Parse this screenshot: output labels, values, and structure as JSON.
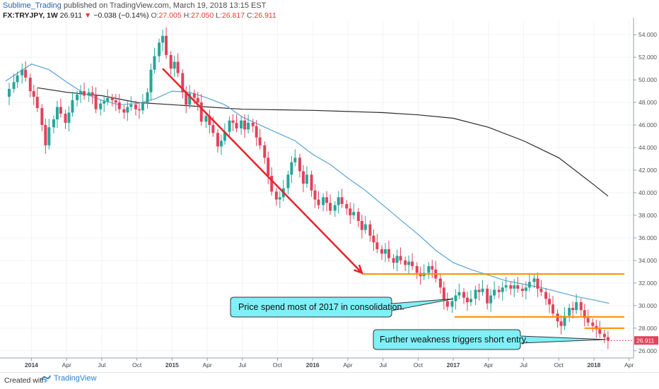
{
  "header": {
    "author": "Sublime_Trading",
    "published": "published on TradingView.com, March 19, 2018 13:15 EST",
    "symbol": "FX:TRYJPY, 1W",
    "last": "26.911",
    "change": "−0.038 (−0.14%)",
    "open_label": "O:",
    "open": "27.005",
    "high_label": "H:",
    "high": "27.050",
    "low_label": "L:",
    "low": "26.817",
    "close_label": "C:",
    "close": "26.911"
  },
  "footer": {
    "created_with": "Created with",
    "brand": "TradingView"
  },
  "annotations": {
    "consolidation": "Price spend most of 2017 in consolidation.",
    "weakness": "Further weakness triggers short entry."
  },
  "colors": {
    "up": "#26a69a",
    "down": "#e0435b",
    "ma_short": "#5aa2d4",
    "ma_long": "#2b2b2b",
    "trend_arrow": "#e8222a",
    "levels": "#ff8c00",
    "callout_fill": "#7ff0f8",
    "price_tag": "#e0435b"
  },
  "chart_data": {
    "type": "candlestick",
    "symbol": "FX:TRYJPY",
    "timeframe": "1W",
    "ylim": [
      25.8,
      55.2
    ],
    "y_ticks": [
      26,
      28,
      30,
      32,
      34,
      36,
      38,
      40,
      42,
      44,
      46,
      48,
      50,
      52,
      54
    ],
    "y_tick_labels": [
      "26.000",
      "28.000",
      "30.000",
      "32.000",
      "34.000",
      "36.000",
      "38.000",
      "40.000",
      "42.000",
      "44.000",
      "46.000",
      "48.000",
      "50.000",
      "52.000",
      "54.000"
    ],
    "x_tick_labels": [
      "2014",
      "Apr",
      "Jul",
      "Oct",
      "2015",
      "Apr",
      "Jul",
      "Oct",
      "2016",
      "Apr",
      "Jul",
      "Oct",
      "2017",
      "Apr",
      "Jul",
      "Oct",
      "2018",
      "Apr"
    ],
    "x_tick_months": [
      0,
      3,
      6,
      9,
      12,
      15,
      18,
      21,
      24,
      27,
      30,
      33,
      36,
      39,
      42,
      45,
      48,
      51
    ],
    "x_start_month": -2.2,
    "x_end_month": 51.2,
    "current_price": 26.911,
    "weekly_close": [
      [
        -2.2,
        48.5
      ],
      [
        -1.9,
        49.2
      ],
      [
        -1.5,
        49.8
      ],
      [
        -1.2,
        50.4
      ],
      [
        -0.8,
        50.9
      ],
      [
        -0.5,
        50.2
      ],
      [
        -0.1,
        49.0
      ],
      [
        0.2,
        48.5
      ],
      [
        0.5,
        47.5
      ],
      [
        0.9,
        46.0
      ],
      [
        1.2,
        44.2
      ],
      [
        1.5,
        45.8
      ],
      [
        1.9,
        46.5
      ],
      [
        2.2,
        47.6
      ],
      [
        2.5,
        47.0
      ],
      [
        2.9,
        46.2
      ],
      [
        3.2,
        47.1
      ],
      [
        3.5,
        48.2
      ],
      [
        3.9,
        48.7
      ],
      [
        4.2,
        49.0
      ],
      [
        4.5,
        48.6
      ],
      [
        4.9,
        48.9
      ],
      [
        5.2,
        48.6
      ],
      [
        5.5,
        47.4
      ],
      [
        5.9,
        47.9
      ],
      [
        6.2,
        48.1
      ],
      [
        6.5,
        48.4
      ],
      [
        6.9,
        48.2
      ],
      [
        7.2,
        48.0
      ],
      [
        7.5,
        47.4
      ],
      [
        7.9,
        47.1
      ],
      [
        8.2,
        47.6
      ],
      [
        8.5,
        47.8
      ],
      [
        8.9,
        47.4
      ],
      [
        9.2,
        47.3
      ],
      [
        9.5,
        48.0
      ],
      [
        9.9,
        48.9
      ],
      [
        10.2,
        50.9
      ],
      [
        10.5,
        52.1
      ],
      [
        10.9,
        53.3
      ],
      [
        11.2,
        53.9
      ],
      [
        11.5,
        52.2
      ],
      [
        11.9,
        51.0
      ],
      [
        12.2,
        51.6
      ],
      [
        12.5,
        50.6
      ],
      [
        12.9,
        48.9
      ],
      [
        13.2,
        47.8
      ],
      [
        13.5,
        48.8
      ],
      [
        13.9,
        48.4
      ],
      [
        14.2,
        48.0
      ],
      [
        14.5,
        46.3
      ],
      [
        14.9,
        46.8
      ],
      [
        15.2,
        46.0
      ],
      [
        15.5,
        45.3
      ],
      [
        15.9,
        44.1
      ],
      [
        16.2,
        44.6
      ],
      [
        16.5,
        45.4
      ],
      [
        16.9,
        46.4
      ],
      [
        17.2,
        46.2
      ],
      [
        17.5,
        45.7
      ],
      [
        17.9,
        46.4
      ],
      [
        18.2,
        45.6
      ],
      [
        18.5,
        46.2
      ],
      [
        18.9,
        45.9
      ],
      [
        19.2,
        44.9
      ],
      [
        19.5,
        44.2
      ],
      [
        19.9,
        43.1
      ],
      [
        20.2,
        41.5
      ],
      [
        20.5,
        40.1
      ],
      [
        20.9,
        39.4
      ],
      [
        21.2,
        39.6
      ],
      [
        21.5,
        40.4
      ],
      [
        21.9,
        41.6
      ],
      [
        22.2,
        42.7
      ],
      [
        22.5,
        43.1
      ],
      [
        22.9,
        41.9
      ],
      [
        23.2,
        40.8
      ],
      [
        23.5,
        41.6
      ],
      [
        23.9,
        40.2
      ],
      [
        24.2,
        39.4
      ],
      [
        24.5,
        38.9
      ],
      [
        24.9,
        39.6
      ],
      [
        25.2,
        39.1
      ],
      [
        25.5,
        38.4
      ],
      [
        25.9,
        38.9
      ],
      [
        26.2,
        39.6
      ],
      [
        26.5,
        39.0
      ],
      [
        26.9,
        38.6
      ],
      [
        27.2,
        38.0
      ],
      [
        27.5,
        38.3
      ],
      [
        27.9,
        37.5
      ],
      [
        28.2,
        36.7
      ],
      [
        28.5,
        37.2
      ],
      [
        28.9,
        36.2
      ],
      [
        29.2,
        35.6
      ],
      [
        29.5,
        35.0
      ],
      [
        29.9,
        34.6
      ],
      [
        30.2,
        35.0
      ],
      [
        30.5,
        34.2
      ],
      [
        30.9,
        33.8
      ],
      [
        31.2,
        34.4
      ],
      [
        31.5,
        34.0
      ],
      [
        31.9,
        33.6
      ],
      [
        32.2,
        33.9
      ],
      [
        32.5,
        33.5
      ],
      [
        32.9,
        32.9
      ],
      [
        33.2,
        32.6
      ],
      [
        33.5,
        32.9
      ],
      [
        33.9,
        33.5
      ],
      [
        34.2,
        33.2
      ],
      [
        34.5,
        32.4
      ],
      [
        34.9,
        31.6
      ],
      [
        35.2,
        30.4
      ],
      [
        35.5,
        29.9
      ],
      [
        35.9,
        30.4
      ],
      [
        36.2,
        30.9
      ],
      [
        36.5,
        31.2
      ],
      [
        36.9,
        30.7
      ],
      [
        37.2,
        30.3
      ],
      [
        37.5,
        30.6
      ],
      [
        37.9,
        31.4
      ],
      [
        38.2,
        31.2
      ],
      [
        38.5,
        31.5
      ],
      [
        38.9,
        30.2
      ],
      [
        39.2,
        30.9
      ],
      [
        39.5,
        31.4
      ],
      [
        39.9,
        31.2
      ],
      [
        40.2,
        31.6
      ],
      [
        40.5,
        31.8
      ],
      [
        40.9,
        31.5
      ],
      [
        41.2,
        31.8
      ],
      [
        41.5,
        31.5
      ],
      [
        41.9,
        31.3
      ],
      [
        42.2,
        31.6
      ],
      [
        42.5,
        32.1
      ],
      [
        42.9,
        32.4
      ],
      [
        43.2,
        31.5
      ],
      [
        43.5,
        31.2
      ],
      [
        43.9,
        30.6
      ],
      [
        44.2,
        30.1
      ],
      [
        44.5,
        29.3
      ],
      [
        44.9,
        28.6
      ],
      [
        45.2,
        28.2
      ],
      [
        45.5,
        29.1
      ],
      [
        45.9,
        29.8
      ],
      [
        46.2,
        29.6
      ],
      [
        46.5,
        30.3
      ],
      [
        46.9,
        29.6
      ],
      [
        47.2,
        28.9
      ],
      [
        47.5,
        28.5
      ],
      [
        47.9,
        28.2
      ],
      [
        48.2,
        27.9
      ],
      [
        48.5,
        27.5
      ],
      [
        48.9,
        27.2
      ],
      [
        49.2,
        26.9
      ]
    ],
    "series": [
      {
        "type": "line",
        "points": [
          [
            -2.2,
            49.9
          ],
          [
            0,
            51.4
          ],
          [
            1.5,
            50.9
          ],
          [
            3,
            49.8
          ],
          [
            4.5,
            48.8
          ],
          [
            6,
            48.2
          ],
          [
            7.5,
            47.8
          ],
          [
            9,
            47.9
          ],
          [
            10.5,
            48.3
          ],
          [
            12,
            49.0
          ],
          [
            13.5,
            48.9
          ],
          [
            15,
            48.4
          ],
          [
            16.5,
            47.8
          ],
          [
            18,
            46.7
          ],
          [
            19.5,
            46.0
          ],
          [
            21,
            45.3
          ],
          [
            22.5,
            44.6
          ],
          [
            24,
            43.4
          ],
          [
            25.5,
            42.5
          ],
          [
            27,
            41.3
          ],
          [
            28.5,
            40.2
          ],
          [
            30,
            38.9
          ],
          [
            31.5,
            37.6
          ],
          [
            33,
            36.3
          ],
          [
            34.5,
            34.9
          ],
          [
            36,
            33.8
          ],
          [
            37.5,
            33.2
          ],
          [
            39,
            32.7
          ],
          [
            40.5,
            32.2
          ],
          [
            42,
            31.9
          ],
          [
            43.5,
            31.6
          ],
          [
            45,
            31.2
          ],
          [
            46.5,
            30.8
          ],
          [
            48,
            30.5
          ],
          [
            49.3,
            30.2
          ]
        ]
      },
      {
        "type": "line",
        "points": [
          [
            0.5,
            49.3
          ],
          [
            3,
            48.9
          ],
          [
            6,
            48.6
          ],
          [
            9,
            48.0
          ],
          [
            12,
            47.8
          ],
          [
            15,
            47.6
          ],
          [
            18,
            47.4
          ],
          [
            21,
            47.35
          ],
          [
            24,
            47.3
          ],
          [
            27,
            47.2
          ],
          [
            30,
            47.1
          ],
          [
            33,
            46.9
          ],
          [
            36,
            46.6
          ],
          [
            39,
            45.8
          ],
          [
            42,
            44.6
          ],
          [
            45,
            43.1
          ],
          [
            48,
            40.7
          ],
          [
            49.2,
            39.7
          ]
        ]
      }
    ],
    "trend_arrow": {
      "from": [
        11.2,
        51.0
      ],
      "to": [
        28.2,
        32.9
      ]
    },
    "levels": [
      {
        "value": 32.8,
        "x_from": 28.2,
        "x_to": 50.6
      },
      {
        "value": 29.0,
        "x_from": 36.1,
        "x_to": 50.6
      },
      {
        "value": 28.0,
        "x_from": 47.2,
        "x_to": 50.6
      }
    ]
  }
}
